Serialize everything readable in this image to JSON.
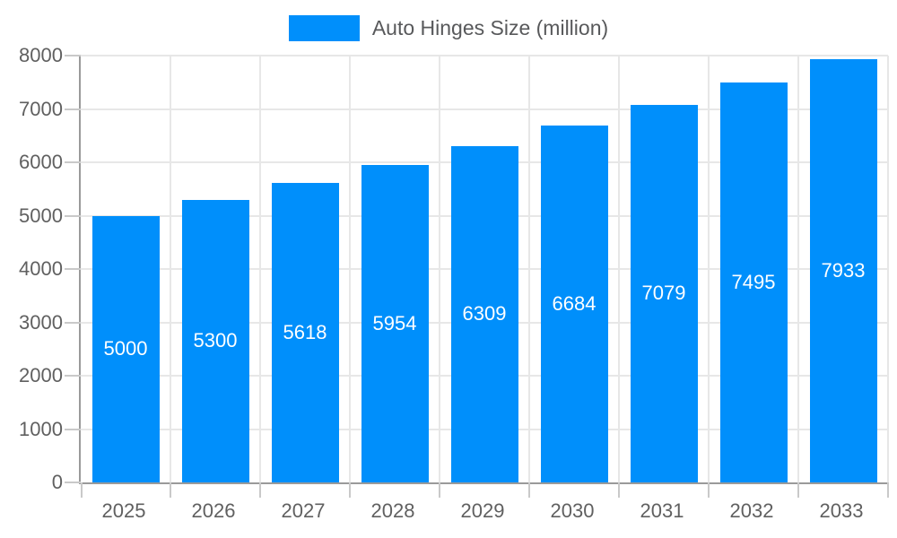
{
  "chart_data": {
    "type": "bar",
    "title": "Auto Hinges Size (million)",
    "categories": [
      "2025",
      "2026",
      "2027",
      "2028",
      "2029",
      "2030",
      "2031",
      "2032",
      "2033"
    ],
    "series": [
      {
        "name": "Auto Hinges Size (million)",
        "values": [
          5000,
          5300,
          5618,
          5954,
          6309,
          6684,
          7079,
          7495,
          7933
        ]
      }
    ],
    "bar_data_labels": [
      "5000",
      "5300",
      "5618",
      "5954",
      "6309",
      "6684",
      "7079",
      "7495",
      "7933"
    ],
    "xlabel": "",
    "ylabel": "",
    "ylim": [
      0,
      8000
    ],
    "ytick_interval": 1000,
    "ytick_labels": [
      "0",
      "1000",
      "2000",
      "3000",
      "4000",
      "5000",
      "6000",
      "7000",
      "8000"
    ],
    "grid": true,
    "legend_position": "top"
  },
  "colors": {
    "bar": "#008ffb",
    "grid": "#e7e7e7",
    "tick": "#c9c9c9",
    "axis": "#9a9a9a",
    "text": "#606060",
    "bar_label": "#ffffff",
    "legend_text": "#58595b"
  }
}
